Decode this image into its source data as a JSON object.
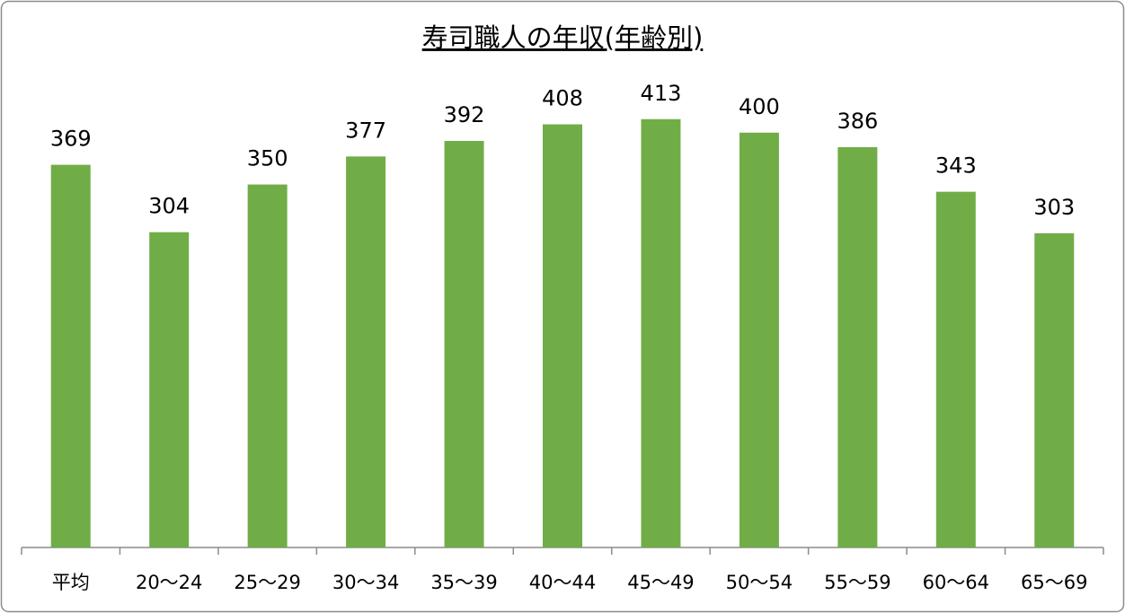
{
  "chart_data": {
    "type": "bar",
    "title": "寿司職人の年収(年齢別)",
    "categories": [
      "平均",
      "20〜24",
      "25〜29",
      "30〜34",
      "35〜39",
      "40〜44",
      "45〜49",
      "50〜54",
      "55〜59",
      "60〜64",
      "65〜69"
    ],
    "values": [
      369,
      304,
      350,
      377,
      392,
      408,
      413,
      400,
      386,
      343,
      303
    ],
    "color": "#70ad47",
    "ylim": [
      0,
      450
    ],
    "grid": false,
    "data_labels": true
  }
}
